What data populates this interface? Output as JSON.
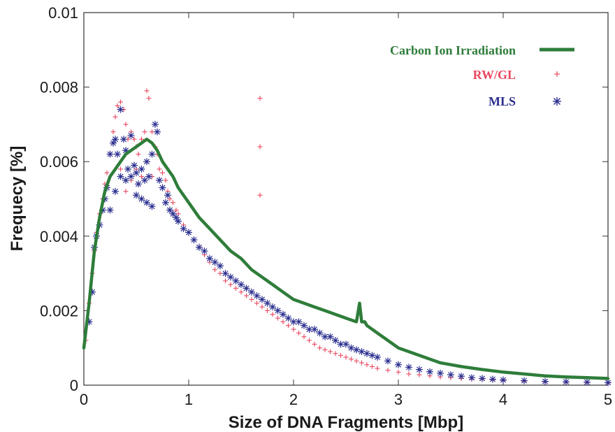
{
  "chart_data": {
    "type": "scatter",
    "xlabel": "Size of DNA Fragments [Mbp]",
    "ylabel": "Frequecy [%]",
    "xlim": [
      0,
      5
    ],
    "ylim": [
      0,
      0.01
    ],
    "x_ticks": [
      0,
      1,
      2,
      3,
      4,
      5
    ],
    "x_tick_labels": [
      "0",
      "1",
      "2",
      "3",
      "4",
      "5"
    ],
    "y_ticks": [
      0,
      0.002,
      0.004,
      0.006,
      0.008,
      0.01
    ],
    "y_tick_labels": [
      "0",
      "0.002",
      "0.004",
      "0.006",
      "0.008",
      "0.01"
    ],
    "grid": false,
    "legend_position": "top-right",
    "series": [
      {
        "name": "Carbon Ion Irradiation",
        "kind": "line",
        "color": "#2e7d3a",
        "x": [
          0,
          0.05,
          0.1,
          0.15,
          0.2,
          0.25,
          0.3,
          0.35,
          0.4,
          0.45,
          0.5,
          0.55,
          0.6,
          0.65,
          0.7,
          0.75,
          0.8,
          0.85,
          0.9,
          1.0,
          1.1,
          1.2,
          1.3,
          1.4,
          1.5,
          1.6,
          1.7,
          1.8,
          1.9,
          2.0,
          2.1,
          2.2,
          2.3,
          2.4,
          2.5,
          2.6,
          2.63,
          2.65,
          2.68,
          2.7,
          2.8,
          2.9,
          3.0,
          3.2,
          3.4,
          3.6,
          3.8,
          4.0,
          4.2,
          4.4,
          4.6,
          4.8,
          5.0
        ],
        "y": [
          0.001,
          0.0022,
          0.0036,
          0.0045,
          0.0052,
          0.0056,
          0.0058,
          0.006,
          0.0062,
          0.0063,
          0.0064,
          0.0065,
          0.0066,
          0.0065,
          0.0063,
          0.006,
          0.0058,
          0.0056,
          0.0053,
          0.0049,
          0.0045,
          0.0042,
          0.0039,
          0.0036,
          0.0034,
          0.0031,
          0.0029,
          0.0027,
          0.0025,
          0.0023,
          0.0022,
          0.0021,
          0.002,
          0.0019,
          0.0018,
          0.0017,
          0.0022,
          0.0017,
          0.0017,
          0.0016,
          0.0014,
          0.0012,
          0.001,
          0.0008,
          0.0006,
          0.0005,
          0.00042,
          0.00035,
          0.0003,
          0.00025,
          0.00022,
          0.0002,
          0.00018
        ]
      },
      {
        "name": "RW/GL",
        "kind": "scatter",
        "marker": "+",
        "color": "#e8475f",
        "x": [
          0.02,
          0.05,
          0.08,
          0.1,
          0.12,
          0.15,
          0.18,
          0.2,
          0.22,
          0.25,
          0.28,
          0.3,
          0.32,
          0.35,
          0.35,
          0.38,
          0.4,
          0.4,
          0.42,
          0.45,
          0.45,
          0.48,
          0.5,
          0.5,
          0.52,
          0.55,
          0.55,
          0.58,
          0.6,
          0.6,
          0.62,
          0.65,
          0.65,
          0.68,
          0.7,
          0.72,
          0.75,
          0.78,
          0.8,
          0.82,
          0.85,
          0.88,
          0.9,
          0.95,
          1.0,
          1.05,
          1.1,
          1.15,
          1.2,
          1.25,
          1.3,
          1.35,
          1.4,
          1.45,
          1.5,
          1.55,
          1.6,
          1.65,
          1.68,
          1.68,
          1.68,
          1.7,
          1.75,
          1.8,
          1.85,
          1.9,
          1.95,
          2.0,
          2.05,
          2.1,
          2.15,
          2.2,
          2.25,
          2.3,
          2.35,
          2.4,
          2.45,
          2.5,
          2.55,
          2.6,
          2.65,
          2.7,
          2.75,
          2.8,
          2.9,
          3.0,
          3.1,
          3.2,
          3.3,
          3.4,
          3.5,
          3.6,
          3.7,
          3.8,
          3.9,
          4.0,
          4.2,
          4.4,
          4.6,
          4.8,
          5.0
        ],
        "y": [
          0.0012,
          0.0022,
          0.003,
          0.0036,
          0.0041,
          0.0046,
          0.005,
          0.0054,
          0.0057,
          0.0062,
          0.0068,
          0.0072,
          0.0075,
          0.0076,
          0.0058,
          0.0074,
          0.007,
          0.0052,
          0.0066,
          0.0068,
          0.0055,
          0.0066,
          0.0064,
          0.0058,
          0.0062,
          0.0066,
          0.0056,
          0.0068,
          0.0079,
          0.006,
          0.0077,
          0.0068,
          0.0056,
          0.0064,
          0.0062,
          0.0058,
          0.0057,
          0.0055,
          0.0052,
          0.005,
          0.0049,
          0.0047,
          0.0046,
          0.0043,
          0.0041,
          0.0039,
          0.0037,
          0.0035,
          0.0033,
          0.0031,
          0.003,
          0.0028,
          0.0027,
          0.0026,
          0.0025,
          0.0024,
          0.0023,
          0.0022,
          0.0077,
          0.0064,
          0.0051,
          0.0021,
          0.002,
          0.0019,
          0.0018,
          0.0017,
          0.0016,
          0.0015,
          0.0014,
          0.0013,
          0.0012,
          0.0011,
          0.001,
          0.00095,
          0.0009,
          0.00085,
          0.0008,
          0.00075,
          0.0007,
          0.00065,
          0.0006,
          0.00055,
          0.0005,
          0.00045,
          0.0004,
          0.00035,
          0.0003,
          0.00028,
          0.00025,
          0.00022,
          0.0002,
          0.00018,
          0.00016,
          0.00015,
          0.00014,
          0.00012,
          0.0001,
          9e-05,
          8e-05,
          7e-05,
          6e-05
        ]
      },
      {
        "name": "MLS",
        "kind": "scatter",
        "marker": "*",
        "color": "#2b2f8f",
        "x": [
          0.05,
          0.08,
          0.1,
          0.12,
          0.15,
          0.18,
          0.2,
          0.22,
          0.25,
          0.25,
          0.28,
          0.3,
          0.3,
          0.32,
          0.35,
          0.35,
          0.38,
          0.4,
          0.4,
          0.42,
          0.45,
          0.45,
          0.48,
          0.5,
          0.5,
          0.52,
          0.55,
          0.55,
          0.58,
          0.6,
          0.6,
          0.62,
          0.65,
          0.65,
          0.68,
          0.7,
          0.72,
          0.75,
          0.78,
          0.8,
          0.82,
          0.85,
          0.88,
          0.9,
          0.95,
          1.0,
          1.05,
          1.1,
          1.15,
          1.2,
          1.25,
          1.3,
          1.35,
          1.4,
          1.45,
          1.5,
          1.55,
          1.6,
          1.65,
          1.7,
          1.75,
          1.8,
          1.85,
          1.9,
          1.95,
          2.0,
          2.05,
          2.1,
          2.15,
          2.2,
          2.25,
          2.3,
          2.35,
          2.4,
          2.45,
          2.5,
          2.55,
          2.6,
          2.65,
          2.7,
          2.75,
          2.8,
          2.9,
          3.0,
          3.1,
          3.2,
          3.3,
          3.4,
          3.5,
          3.6,
          3.7,
          3.8,
          3.9,
          4.0,
          4.2,
          4.4,
          4.6,
          4.8,
          5.0
        ],
        "y": [
          0.0017,
          0.0025,
          0.0037,
          0.004,
          0.0043,
          0.0047,
          0.005,
          0.0053,
          0.0062,
          0.0047,
          0.0065,
          0.0066,
          0.0052,
          0.0062,
          0.0074,
          0.0056,
          0.0066,
          0.0063,
          0.0055,
          0.0058,
          0.0067,
          0.0056,
          0.0059,
          0.0057,
          0.0051,
          0.0054,
          0.0058,
          0.005,
          0.0055,
          0.006,
          0.0049,
          0.0056,
          0.0062,
          0.0048,
          0.007,
          0.0068,
          0.0055,
          0.0053,
          0.0049,
          0.0051,
          0.0047,
          0.0046,
          0.0045,
          0.0044,
          0.0042,
          0.0041,
          0.0039,
          0.0037,
          0.0036,
          0.0034,
          0.0033,
          0.0032,
          0.003,
          0.0029,
          0.0028,
          0.0027,
          0.0026,
          0.0025,
          0.0024,
          0.0023,
          0.0022,
          0.0021,
          0.002,
          0.0019,
          0.0018,
          0.0017,
          0.0017,
          0.0016,
          0.0015,
          0.0015,
          0.0014,
          0.0013,
          0.0013,
          0.0012,
          0.0011,
          0.0011,
          0.001,
          0.00095,
          0.0009,
          0.00085,
          0.0008,
          0.00075,
          0.00065,
          0.00055,
          0.00048,
          0.00042,
          0.00036,
          0.00032,
          0.00028,
          0.00024,
          0.0002,
          0.00018,
          0.00016,
          0.00014,
          0.00012,
          0.0001,
          9e-05,
          8e-05,
          7e-05
        ]
      }
    ]
  }
}
